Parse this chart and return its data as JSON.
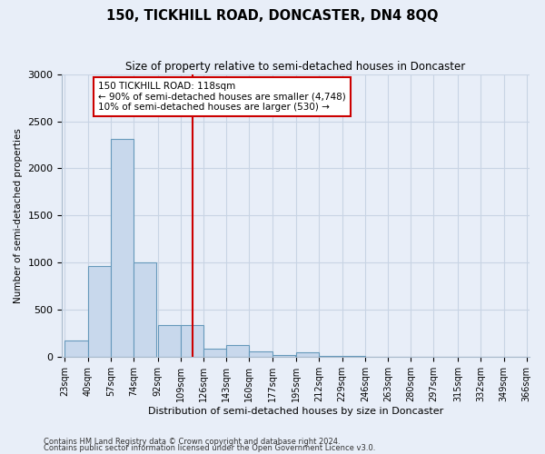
{
  "title": "150, TICKHILL ROAD, DONCASTER, DN4 8QQ",
  "subtitle": "Size of property relative to semi-detached houses in Doncaster",
  "xlabel": "Distribution of semi-detached houses by size in Doncaster",
  "ylabel": "Number of semi-detached properties",
  "footnote1": "Contains HM Land Registry data © Crown copyright and database right 2024.",
  "footnote2": "Contains public sector information licensed under the Open Government Licence v3.0.",
  "bar_left_edges": [
    23,
    40,
    57,
    74,
    92,
    109,
    126,
    143,
    160,
    177,
    195,
    212,
    229,
    246,
    263,
    280,
    297,
    315,
    332,
    349
  ],
  "bar_heights": [
    175,
    960,
    2310,
    1000,
    340,
    340,
    90,
    120,
    55,
    20,
    50,
    5,
    5,
    0,
    0,
    0,
    0,
    0,
    0,
    0
  ],
  "bin_width": 17,
  "tick_labels": [
    "23sqm",
    "40sqm",
    "57sqm",
    "74sqm",
    "92sqm",
    "109sqm",
    "126sqm",
    "143sqm",
    "160sqm",
    "177sqm",
    "195sqm",
    "212sqm",
    "229sqm",
    "246sqm",
    "263sqm",
    "280sqm",
    "297sqm",
    "315sqm",
    "332sqm",
    "349sqm",
    "366sqm"
  ],
  "property_size": 118,
  "red_line_x": 118,
  "annotation_title": "150 TICKHILL ROAD: 118sqm",
  "annotation_line1": "← 90% of semi-detached houses are smaller (4,748)",
  "annotation_line2": "10% of semi-detached houses are larger (530) →",
  "bar_color": "#c8d8ec",
  "bar_edge_color": "#6699bb",
  "red_line_color": "#cc0000",
  "annotation_box_color": "#ffffff",
  "annotation_box_edge": "#cc0000",
  "grid_color": "#c8d4e4",
  "background_color": "#e8eef8",
  "ylim": [
    0,
    3000
  ],
  "yticks": [
    0,
    500,
    1000,
    1500,
    2000,
    2500,
    3000
  ]
}
